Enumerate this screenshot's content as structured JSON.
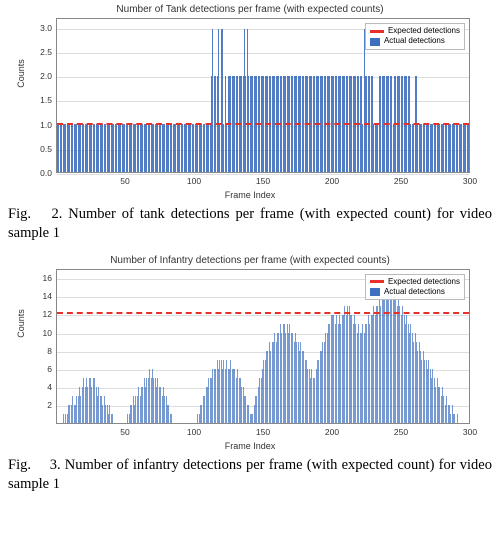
{
  "fig2": {
    "type": "bar",
    "title": "Number of Tank detections per frame (with expected counts)",
    "xlabel": "Frame Index",
    "ylabel": "Counts",
    "bar_color": "#3f6fbf",
    "bar_opacity": 0.9,
    "expected_color": "#e8302a",
    "expected_value": 1.0,
    "ylim": [
      0.0,
      3.2
    ],
    "yticks": [
      0.0,
      0.5,
      1.0,
      1.5,
      2.0,
      2.5,
      3.0
    ],
    "xlim": [
      0,
      300
    ],
    "xticks": [
      50,
      100,
      150,
      200,
      250,
      300
    ],
    "grid_color": "#dddddd",
    "values": [
      1,
      1,
      1,
      1,
      1,
      1,
      1,
      1,
      1,
      1,
      1,
      1,
      1,
      1,
      1,
      1,
      1,
      1,
      1,
      1,
      1,
      1,
      1,
      1,
      1,
      1,
      1,
      1,
      1,
      1,
      1,
      1,
      1,
      1,
      1,
      1,
      1,
      1,
      1,
      1,
      1,
      1,
      1,
      1,
      1,
      1,
      1,
      1,
      1,
      1,
      1,
      1,
      1,
      1,
      1,
      1,
      1,
      1,
      1,
      1,
      1,
      1,
      1,
      1,
      1,
      1,
      1,
      1,
      1,
      1,
      1,
      1,
      1,
      1,
      1,
      1,
      1,
      1,
      1,
      1,
      1,
      1,
      1,
      1,
      1,
      1,
      1,
      1,
      1,
      1,
      1,
      1,
      1,
      1,
      1,
      1,
      1,
      1,
      1,
      1,
      1,
      1,
      1,
      1,
      1,
      1,
      1,
      1,
      1,
      1,
      1,
      1,
      2,
      3,
      2,
      2,
      2,
      3,
      1,
      3,
      3,
      1,
      2,
      1,
      2,
      2,
      2,
      2,
      2,
      2,
      2,
      2,
      2,
      2,
      2,
      2,
      3,
      2,
      3,
      2,
      2,
      2,
      2,
      2,
      2,
      2,
      2,
      2,
      2,
      2,
      2,
      2,
      2,
      2,
      2,
      2,
      2,
      2,
      2,
      2,
      2,
      2,
      2,
      2,
      2,
      2,
      2,
      2,
      2,
      2,
      2,
      2,
      2,
      2,
      2,
      2,
      2,
      2,
      2,
      2,
      2,
      2,
      2,
      2,
      2,
      2,
      2,
      2,
      2,
      2,
      2,
      2,
      2,
      2,
      2,
      2,
      2,
      2,
      2,
      2,
      2,
      2,
      2,
      2,
      2,
      2,
      2,
      2,
      2,
      2,
      2,
      2,
      2,
      2,
      2,
      2,
      2,
      2,
      2,
      2,
      2,
      2,
      1,
      3,
      2,
      2,
      2,
      2,
      2,
      2,
      1,
      1,
      1,
      1,
      2,
      2,
      2,
      2,
      2,
      2,
      2,
      2,
      2,
      2,
      1,
      2,
      2,
      2,
      2,
      2,
      2,
      2,
      2,
      2,
      2,
      2,
      2,
      1,
      1,
      1,
      2,
      2,
      1,
      1,
      1,
      1,
      1,
      1,
      1,
      1,
      1,
      1,
      1,
      1,
      1,
      1,
      1,
      1,
      1,
      1,
      1,
      1,
      1,
      1,
      1,
      1,
      1,
      1,
      1,
      1,
      1,
      1,
      1,
      1,
      1,
      1,
      1,
      1,
      1,
      1
    ],
    "legend": {
      "expected": "Expected detections",
      "actual": "Actual detections"
    },
    "caption": "Fig.  2. Number of tank detections per frame (with expected count) for video sample 1"
  },
  "fig3": {
    "type": "bar",
    "title": "Number of Infantry detections per frame (with expected counts)",
    "xlabel": "Frame Index",
    "ylabel": "Counts",
    "bar_color": "#3f6fbf",
    "bar_opacity": 0.7,
    "expected_color": "#e8302a",
    "expected_value": 12,
    "ylim": [
      0,
      17
    ],
    "yticks": [
      2,
      4,
      6,
      8,
      10,
      12,
      14,
      16
    ],
    "xlim": [
      0,
      300
    ],
    "xticks": [
      50,
      100,
      150,
      200,
      250,
      300
    ],
    "grid_color": "#dddddd",
    "values": [
      0,
      0,
      0,
      0,
      1,
      0,
      1,
      1,
      2,
      2,
      2,
      3,
      2,
      2,
      3,
      3,
      4,
      3,
      4,
      5,
      4,
      5,
      4,
      5,
      5,
      4,
      5,
      5,
      4,
      3,
      4,
      3,
      3,
      2,
      3,
      2,
      2,
      1,
      2,
      1,
      1,
      0,
      0,
      0,
      0,
      0,
      0,
      0,
      0,
      0,
      0,
      1,
      1,
      2,
      2,
      3,
      2,
      3,
      3,
      4,
      3,
      4,
      4,
      5,
      4,
      5,
      5,
      6,
      5,
      6,
      5,
      5,
      4,
      5,
      4,
      4,
      3,
      4,
      3,
      3,
      2,
      2,
      1,
      1,
      0,
      0,
      0,
      0,
      0,
      0,
      0,
      0,
      0,
      0,
      0,
      0,
      0,
      0,
      0,
      0,
      0,
      0,
      1,
      1,
      2,
      2,
      3,
      3,
      4,
      4,
      5,
      5,
      5,
      6,
      6,
      6,
      7,
      6,
      7,
      7,
      6,
      7,
      6,
      7,
      6,
      6,
      7,
      6,
      6,
      6,
      5,
      6,
      5,
      5,
      4,
      4,
      3,
      3,
      2,
      2,
      1,
      1,
      1,
      2,
      3,
      3,
      4,
      5,
      5,
      6,
      7,
      7,
      8,
      8,
      9,
      8,
      9,
      9,
      10,
      9,
      10,
      10,
      11,
      10,
      11,
      11,
      10,
      11,
      10,
      11,
      10,
      10,
      9,
      10,
      9,
      9,
      8,
      9,
      8,
      8,
      7,
      7,
      6,
      6,
      5,
      6,
      5,
      5,
      6,
      7,
      7,
      8,
      8,
      9,
      9,
      10,
      10,
      11,
      11,
      12,
      12,
      12,
      11,
      12,
      11,
      12,
      11,
      12,
      12,
      13,
      12,
      13,
      13,
      12,
      12,
      11,
      12,
      11,
      10,
      11,
      10,
      10,
      11,
      10,
      11,
      11,
      12,
      11,
      12,
      12,
      13,
      12,
      13,
      13,
      14,
      13,
      14,
      14,
      15,
      14,
      15,
      15,
      16,
      15,
      14,
      15,
      14,
      13,
      14,
      13,
      12,
      13,
      12,
      11,
      12,
      11,
      10,
      11,
      10,
      9,
      10,
      9,
      8,
      9,
      8,
      7,
      8,
      7,
      7,
      6,
      7,
      6,
      5,
      6,
      5,
      4,
      5,
      4,
      4,
      3,
      4,
      3,
      2,
      3,
      2,
      2,
      1,
      2,
      1,
      1,
      0,
      1,
      0,
      0,
      0,
      0,
      0,
      0,
      0,
      0
    ],
    "legend": {
      "expected": "Expected detections",
      "actual": "Actual detections"
    },
    "caption": "Fig.  3. Number of infantry detections per frame (with expected count) for video sample 1"
  }
}
